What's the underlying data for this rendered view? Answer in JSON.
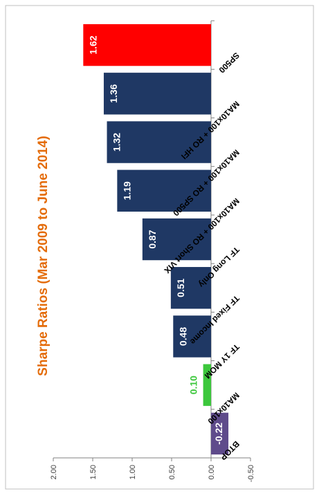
{
  "chart_data": {
    "type": "bar",
    "orientation": "rotated-90-clockwise",
    "title": "Sharpe  Ratios (Mar 2009 to June 2014)",
    "xlabel": "",
    "ylabel": "",
    "categories": [
      "BTOP",
      "MA10x100",
      "TF 1Y MOM",
      "TF Fixed Income",
      "TF Long Only",
      "MA10x100 + RO Short VIX",
      "MA10x100 + RO SP500",
      "MA10x100 + RO HFI",
      "SP500"
    ],
    "values": [
      -0.22,
      0.1,
      0.48,
      0.51,
      0.87,
      1.19,
      1.32,
      1.36,
      1.62
    ],
    "value_labels": [
      "-0.22",
      "0.10",
      "0.48",
      "0.51",
      "0.87",
      "1.19",
      "1.32",
      "1.36",
      "1.62"
    ],
    "bar_colors": [
      "#5f4b8b",
      "#3cc73c",
      "#1f3864",
      "#1f3864",
      "#1f3864",
      "#1f3864",
      "#1f3864",
      "#1f3864",
      "#ff0000"
    ],
    "label_colors": [
      "#ffffff",
      "#3cc73c",
      "#ffffff",
      "#ffffff",
      "#ffffff",
      "#ffffff",
      "#ffffff",
      "#ffffff",
      "#ffffff"
    ],
    "ylim": [
      -0.5,
      2.0
    ],
    "yticks": [
      "-0.50",
      "0.00",
      "0.50",
      "1.00",
      "1.50",
      "2.00"
    ],
    "ytick_values": [
      -0.5,
      0,
      0.5,
      1.0,
      1.5,
      2.0
    ],
    "grid": false,
    "legend": "none",
    "title_color": "#e46c0a"
  }
}
